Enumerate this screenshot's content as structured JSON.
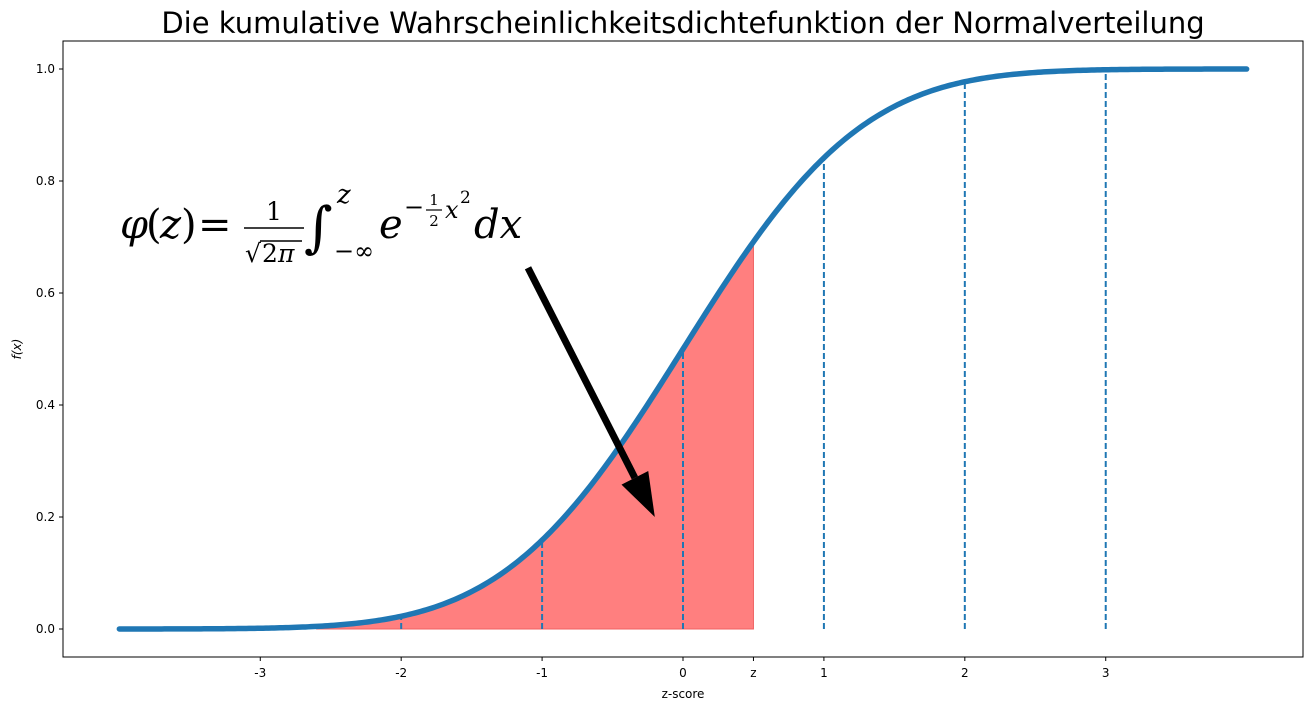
{
  "chart_data": {
    "type": "line",
    "title": "Die kumulative Wahrscheinlichkeitsdichtefunktion der Normalverteilung",
    "xlabel": "z-score",
    "ylabel": "f(x)",
    "xlim": [
      -4.4,
      4.4
    ],
    "ylim": [
      -0.05,
      1.05
    ],
    "x_ticks": [
      {
        "value": -3,
        "label": "-3"
      },
      {
        "value": -2,
        "label": "-2"
      },
      {
        "value": -1,
        "label": "-1"
      },
      {
        "value": 0,
        "label": "0"
      },
      {
        "value": 0.5,
        "label": "z"
      },
      {
        "value": 1,
        "label": "1"
      },
      {
        "value": 2,
        "label": "2"
      },
      {
        "value": 3,
        "label": "3"
      }
    ],
    "y_ticks": [
      {
        "value": 0.0,
        "label": "0.0"
      },
      {
        "value": 0.2,
        "label": "0.2"
      },
      {
        "value": 0.4,
        "label": "0.4"
      },
      {
        "value": 0.6,
        "label": "0.6"
      },
      {
        "value": 0.8,
        "label": "0.8"
      },
      {
        "value": 1.0,
        "label": "1.0"
      }
    ],
    "curve": {
      "function": "normal_cdf",
      "x_range": [
        -4,
        4
      ],
      "color": "#1f77b4"
    },
    "shaded_area": {
      "x_range": [
        -2.6,
        0.5
      ],
      "color": "#ff7f7f"
    },
    "vertical_dashed_lines": [
      -2,
      -1,
      0,
      1,
      2,
      3
    ],
    "annotation": {
      "formula": "φ(z) = 1/√(2π) ∫_{−∞}^{z} e^{−½x²} dx",
      "arrow_from": [
        -1.1,
        0.645
      ],
      "arrow_to": [
        -0.2,
        0.2
      ]
    }
  }
}
